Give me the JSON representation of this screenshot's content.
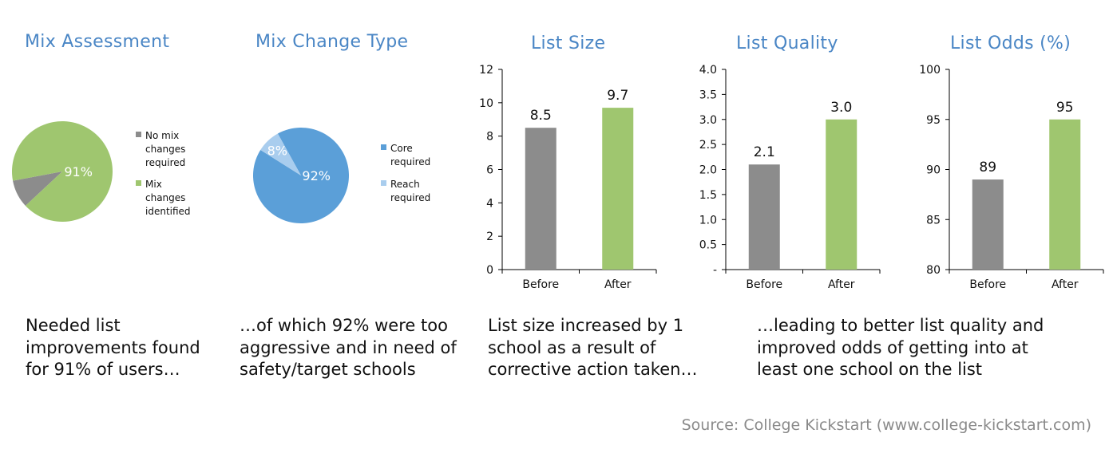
{
  "colors": {
    "title": "#4a86c5",
    "gray": "#8c8c8c",
    "green": "#9fc66f",
    "blue": "#5b9fd8",
    "lightblue": "#a9cdee"
  },
  "chart_data": [
    {
      "type": "pie",
      "title": "Mix Assessment",
      "slices": [
        {
          "label": "No mix changes required",
          "legend_lines": [
            "No mix",
            "changes",
            "required"
          ],
          "value": 9,
          "color": "#8c8c8c"
        },
        {
          "label": "Mix changes identified",
          "legend_lines": [
            "Mix",
            "changes",
            "identified"
          ],
          "value": 91,
          "color": "#9fc66f",
          "data_label": "91%"
        }
      ]
    },
    {
      "type": "pie",
      "title": "Mix Change Type",
      "slices": [
        {
          "label": "Core required",
          "legend_lines": [
            "Core",
            "required"
          ],
          "value": 92,
          "color": "#5b9fd8",
          "data_label": "92%"
        },
        {
          "label": "Reach required",
          "legend_lines": [
            "Reach",
            "required"
          ],
          "value": 8,
          "color": "#a9cdee",
          "data_label": "8%"
        }
      ]
    },
    {
      "type": "bar",
      "title": "List Size",
      "categories": [
        "Before",
        "After"
      ],
      "values": [
        8.5,
        9.7
      ],
      "data_labels": [
        "8.5",
        "9.7"
      ],
      "colors": [
        "#8c8c8c",
        "#9fc66f"
      ],
      "ylim": [
        0,
        12
      ],
      "yticks": [
        0,
        2,
        4,
        6,
        8,
        10,
        12
      ],
      "ytick_labels": [
        "0",
        "2",
        "4",
        "6",
        "8",
        "10",
        "12"
      ]
    },
    {
      "type": "bar",
      "title": "List Quality",
      "categories": [
        "Before",
        "After"
      ],
      "values": [
        2.1,
        3.0
      ],
      "data_labels": [
        "2.1",
        "3.0"
      ],
      "colors": [
        "#8c8c8c",
        "#9fc66f"
      ],
      "ylim": [
        0,
        4
      ],
      "yticks": [
        0,
        0.5,
        1,
        1.5,
        2,
        2.5,
        3,
        3.5,
        4
      ],
      "ytick_labels": [
        "-",
        "0.5",
        "1.0",
        "1.5",
        "2.0",
        "2.5",
        "3.0",
        "3.5",
        "4.0"
      ]
    },
    {
      "type": "bar",
      "title": "List Odds (%)",
      "categories": [
        "Before",
        "After"
      ],
      "values": [
        89,
        95
      ],
      "data_labels": [
        "89",
        "95"
      ],
      "colors": [
        "#8c8c8c",
        "#9fc66f"
      ],
      "ylim": [
        80,
        100
      ],
      "yticks": [
        80,
        85,
        90,
        95,
        100
      ],
      "ytick_labels": [
        "80",
        "85",
        "90",
        "95",
        "100"
      ]
    }
  ],
  "captions": [
    "Needed list improvements found for 91% of users…",
    "…of which 92% were too aggressive and in need of safety/target schools",
    "List size increased by 1 school as a result of corrective action taken…",
    "…leading to better list quality and improved odds of getting into at least one school on the list"
  ],
  "source": "Source: College Kickstart (www.college-kickstart.com)"
}
